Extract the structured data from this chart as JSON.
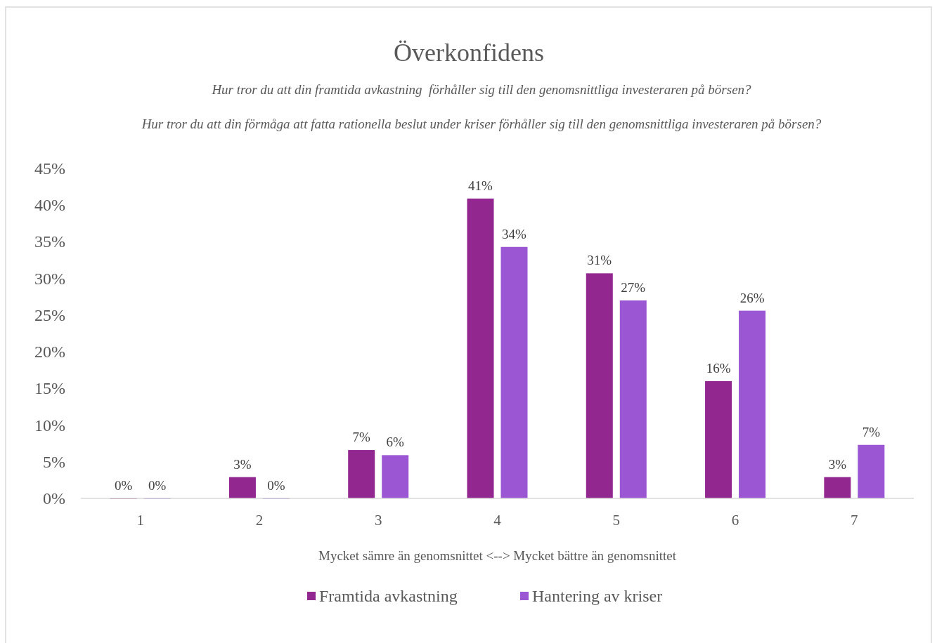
{
  "chart_data": {
    "type": "bar",
    "title": "Överkonfidens",
    "subtitle": "Hur tror du att din framtida avkastning  förhåller sig till den genomsnittliga investeraren på börsen?",
    "annotations": [
      "Hur tror du att din förmåga att fatta rationella beslut under kriser förhåller sig till den genomsnittliga investeraren på börsen?"
    ],
    "xlabel": "Mycket sämre än genomsnittet <--> Mycket bättre än genomsnittet",
    "categories": [
      "1",
      "2",
      "3",
      "4",
      "5",
      "6",
      "7"
    ],
    "series": [
      {
        "name": "Framtida avkastning",
        "color": "#92278f",
        "values": [
          0,
          2.9,
          6.6,
          40.9,
          30.7,
          16,
          2.9
        ],
        "value_labels": [
          "0%",
          "3%",
          "7%",
          "41%",
          "31%",
          "16%",
          "3%"
        ]
      },
      {
        "name": "Hantering av kriser",
        "color": "#9b57d3",
        "values": [
          0,
          0,
          5.9,
          34.3,
          27,
          25.6,
          7.3
        ],
        "value_labels": [
          "0%",
          "0%",
          "6%",
          "34%",
          "27%",
          "26%",
          "7%"
        ]
      }
    ],
    "ylim": [
      0,
      45
    ],
    "yticks": [
      {
        "value": 0,
        "label": "0%"
      },
      {
        "value": 5,
        "label": "5%"
      },
      {
        "value": 10,
        "label": "10%"
      },
      {
        "value": 15,
        "label": "15%"
      },
      {
        "value": 20,
        "label": "20%"
      },
      {
        "value": 25,
        "label": "25%"
      },
      {
        "value": 30,
        "label": "30%"
      },
      {
        "value": 35,
        "label": "35%"
      },
      {
        "value": 40,
        "label": "40%"
      },
      {
        "value": 45,
        "label": "45%"
      }
    ],
    "grid": false,
    "legend": "bottom"
  }
}
